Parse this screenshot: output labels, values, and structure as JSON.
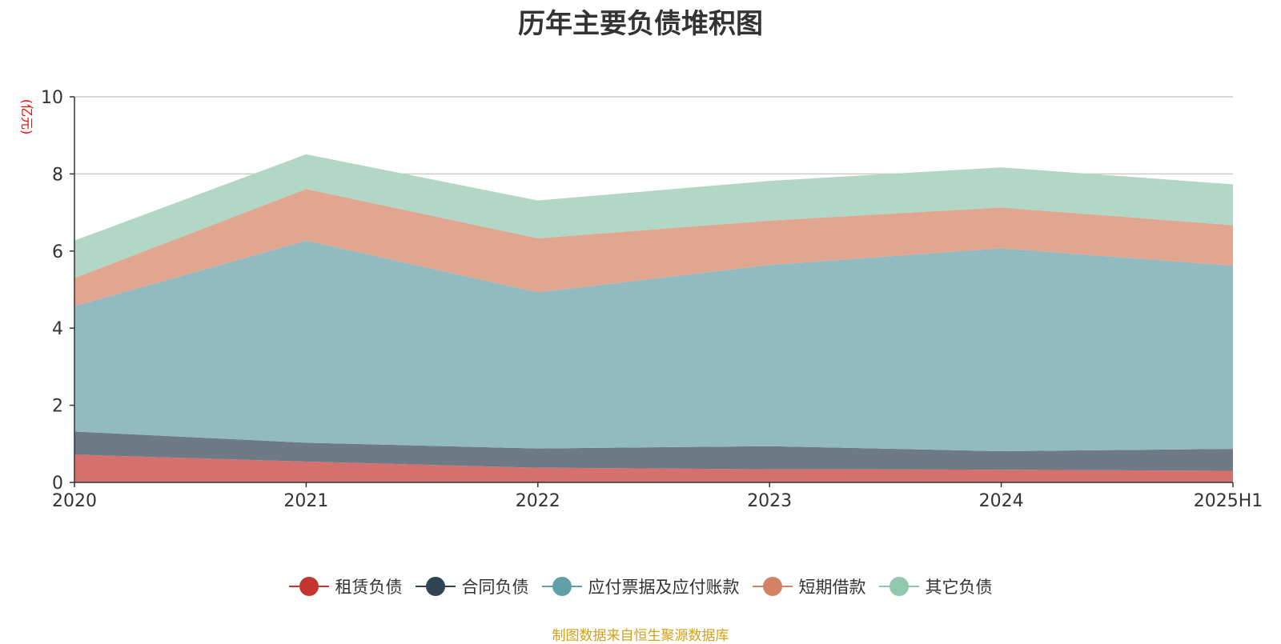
{
  "chart_data": {
    "type": "area",
    "stacked": true,
    "title": "历年主要负债堆积图",
    "ylabel": "(亿元)",
    "xlabel": "",
    "categories": [
      "2020",
      "2021",
      "2022",
      "2023",
      "2024",
      "2025H1"
    ],
    "ylim": [
      0,
      10
    ],
    "yticks": [
      0,
      2,
      4,
      6,
      8,
      10
    ],
    "grid": true,
    "legend_position": "bottom",
    "series": [
      {
        "name": "租赁负债",
        "color": "#c23531",
        "fill": "#d4716f",
        "values": [
          0.72,
          0.54,
          0.38,
          0.34,
          0.33,
          0.3
        ]
      },
      {
        "name": "合同负债",
        "color": "#2f4554",
        "fill": "#6e7b86",
        "values": [
          0.6,
          0.49,
          0.5,
          0.6,
          0.48,
          0.57
        ]
      },
      {
        "name": "应付票据及应付账款",
        "color": "#61a0a8",
        "fill": "#91bac1",
        "values": [
          3.25,
          5.24,
          4.05,
          4.7,
          5.26,
          4.75
        ]
      },
      {
        "name": "短期借款",
        "color": "#d48265",
        "fill": "#e0a690",
        "values": [
          0.73,
          1.34,
          1.4,
          1.15,
          1.06,
          1.05
        ]
      },
      {
        "name": "其它负债",
        "color": "#91c7ae",
        "fill": "#b2d7c6",
        "values": [
          0.97,
          0.9,
          0.98,
          1.03,
          1.04,
          1.06
        ]
      }
    ]
  },
  "source_note": "制图数据来自恒生聚源数据库",
  "colors": {
    "source_note": "#d4a017",
    "ylabel": "#ff0000",
    "axis": "#333333",
    "grid": "#cccccc"
  }
}
